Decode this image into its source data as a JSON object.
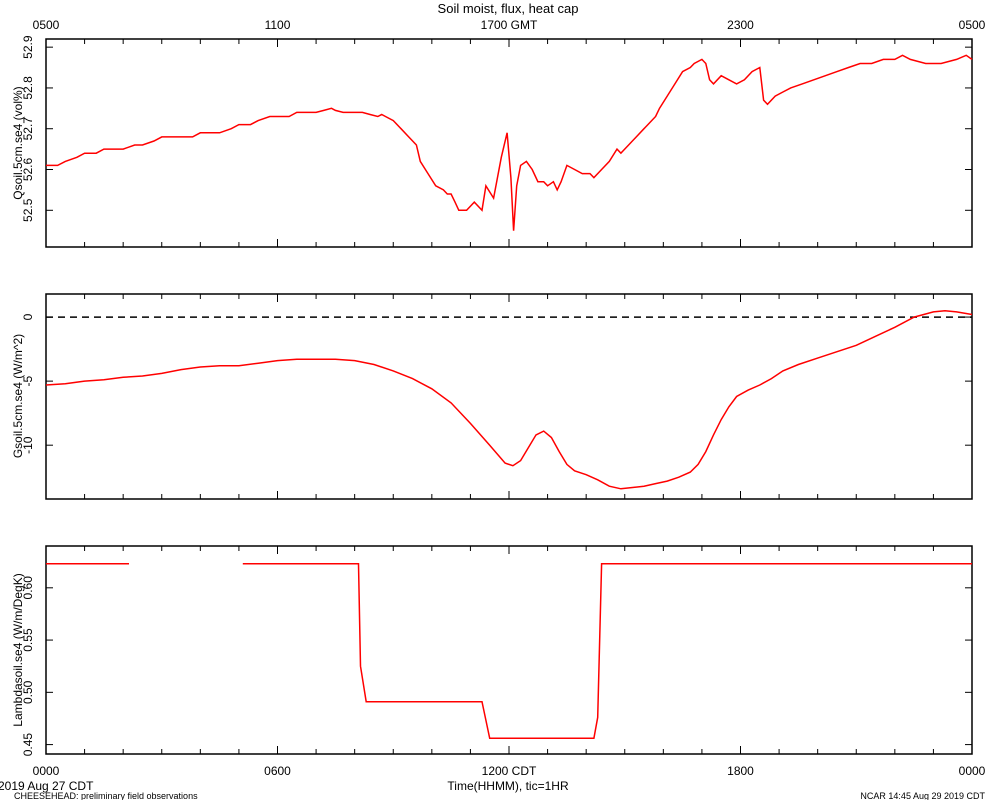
{
  "title": "Soil moist, flux, heat cap",
  "top_axis": {
    "ticks": [
      {
        "x": 0,
        "label": "0500"
      },
      {
        "x": 6,
        "label": "1100"
      },
      {
        "x": 12,
        "label": "1700 GMT"
      },
      {
        "x": 18,
        "label": "2300"
      },
      {
        "x": 24,
        "label": "0500"
      }
    ]
  },
  "bottom_axis": {
    "label": "Time(HHMM), tic=1HR",
    "ticks": [
      {
        "x": 0,
        "label": "0000"
      },
      {
        "x": 6,
        "label": "0600"
      },
      {
        "x": 12,
        "label": "1200 CDT"
      },
      {
        "x": 18,
        "label": "1800"
      },
      {
        "x": 24,
        "label": "0000"
      }
    ]
  },
  "footer": {
    "date": "2019 Aug 27 CDT",
    "project": "CHEESEHEAD: preliminary field observations",
    "credit": "NCAR 14:45 Aug 29 2019 CDT"
  },
  "colors": {
    "series": "#ff0000",
    "axis": "#000000"
  },
  "chart_data": [
    {
      "type": "line",
      "ylabel": "Qsoil.5cm.se4 (vol%)",
      "xlim": [
        0,
        24
      ],
      "ylim": [
        52.41,
        52.92
      ],
      "yticks": [
        {
          "v": 52.5,
          "label": "52.5"
        },
        {
          "v": 52.6,
          "label": "52.6"
        },
        {
          "v": 52.7,
          "label": "52.7"
        },
        {
          "v": 52.8,
          "label": "52.8"
        },
        {
          "v": 52.9,
          "label": "52.9"
        }
      ],
      "series": [
        {
          "values": [
            [
              0,
              52.61
            ],
            [
              0.3,
              52.61
            ],
            [
              0.5,
              52.62
            ],
            [
              0.8,
              52.63
            ],
            [
              1.0,
              52.64
            ],
            [
              1.3,
              52.64
            ],
            [
              1.5,
              52.65
            ],
            [
              1.8,
              52.65
            ],
            [
              2.0,
              52.65
            ],
            [
              2.3,
              52.66
            ],
            [
              2.5,
              52.66
            ],
            [
              2.8,
              52.67
            ],
            [
              3.0,
              52.68
            ],
            [
              3.3,
              52.68
            ],
            [
              3.5,
              52.68
            ],
            [
              3.8,
              52.68
            ],
            [
              4.0,
              52.69
            ],
            [
              4.3,
              52.69
            ],
            [
              4.5,
              52.69
            ],
            [
              4.8,
              52.7
            ],
            [
              5.0,
              52.71
            ],
            [
              5.3,
              52.71
            ],
            [
              5.5,
              52.72
            ],
            [
              5.8,
              52.73
            ],
            [
              6.0,
              52.73
            ],
            [
              6.3,
              52.73
            ],
            [
              6.5,
              52.74
            ],
            [
              6.8,
              52.74
            ],
            [
              7.0,
              52.74
            ],
            [
              7.2,
              52.745
            ],
            [
              7.4,
              52.75
            ],
            [
              7.5,
              52.745
            ],
            [
              7.7,
              52.74
            ],
            [
              8.0,
              52.74
            ],
            [
              8.2,
              52.74
            ],
            [
              8.4,
              52.735
            ],
            [
              8.6,
              52.73
            ],
            [
              8.7,
              52.735
            ],
            [
              8.8,
              52.73
            ],
            [
              9.0,
              52.72
            ],
            [
              9.2,
              52.7
            ],
            [
              9.4,
              52.68
            ],
            [
              9.6,
              52.66
            ],
            [
              9.7,
              52.62
            ],
            [
              9.9,
              52.59
            ],
            [
              10.1,
              52.56
            ],
            [
              10.3,
              52.55
            ],
            [
              10.4,
              52.54
            ],
            [
              10.5,
              52.54
            ],
            [
              10.6,
              52.52
            ],
            [
              10.7,
              52.5
            ],
            [
              10.9,
              52.5
            ],
            [
              11.1,
              52.52
            ],
            [
              11.3,
              52.5
            ],
            [
              11.4,
              52.56
            ],
            [
              11.6,
              52.53
            ],
            [
              11.8,
              52.63
            ],
            [
              11.95,
              52.69
            ],
            [
              12.05,
              52.58
            ],
            [
              12.12,
              52.45
            ],
            [
              12.2,
              52.56
            ],
            [
              12.3,
              52.61
            ],
            [
              12.45,
              52.62
            ],
            [
              12.6,
              52.6
            ],
            [
              12.75,
              52.57
            ],
            [
              12.9,
              52.57
            ],
            [
              13.0,
              52.56
            ],
            [
              13.15,
              52.57
            ],
            [
              13.25,
              52.55
            ],
            [
              13.35,
              52.57
            ],
            [
              13.5,
              52.61
            ],
            [
              13.7,
              52.6
            ],
            [
              13.9,
              52.59
            ],
            [
              14.1,
              52.59
            ],
            [
              14.2,
              52.58
            ],
            [
              14.4,
              52.6
            ],
            [
              14.6,
              52.62
            ],
            [
              14.8,
              52.65
            ],
            [
              14.9,
              52.64
            ],
            [
              15.1,
              52.66
            ],
            [
              15.3,
              52.68
            ],
            [
              15.5,
              52.7
            ],
            [
              15.6,
              52.71
            ],
            [
              15.8,
              52.73
            ],
            [
              15.9,
              52.75
            ],
            [
              16.1,
              52.78
            ],
            [
              16.3,
              52.81
            ],
            [
              16.5,
              52.84
            ],
            [
              16.7,
              52.85
            ],
            [
              16.8,
              52.86
            ],
            [
              17.0,
              52.87
            ],
            [
              17.1,
              52.86
            ],
            [
              17.2,
              52.82
            ],
            [
              17.3,
              52.81
            ],
            [
              17.5,
              52.83
            ],
            [
              17.7,
              52.82
            ],
            [
              17.9,
              52.81
            ],
            [
              18.1,
              52.82
            ],
            [
              18.3,
              52.84
            ],
            [
              18.5,
              52.85
            ],
            [
              18.6,
              52.77
            ],
            [
              18.7,
              52.76
            ],
            [
              18.9,
              52.78
            ],
            [
              19.1,
              52.79
            ],
            [
              19.3,
              52.8
            ],
            [
              19.6,
              52.81
            ],
            [
              19.9,
              52.82
            ],
            [
              20.2,
              52.83
            ],
            [
              20.5,
              52.84
            ],
            [
              20.8,
              52.85
            ],
            [
              21.1,
              52.86
            ],
            [
              21.4,
              52.86
            ],
            [
              21.7,
              52.87
            ],
            [
              22.0,
              52.87
            ],
            [
              22.2,
              52.88
            ],
            [
              22.4,
              52.87
            ],
            [
              22.8,
              52.86
            ],
            [
              23.2,
              52.86
            ],
            [
              23.6,
              52.87
            ],
            [
              23.85,
              52.88
            ],
            [
              24.0,
              52.87
            ]
          ]
        }
      ]
    },
    {
      "type": "line",
      "ylabel": "Gsoil.5cm.se4 (W/m^2)",
      "xlim": [
        0,
        24
      ],
      "ylim": [
        -14.2,
        1.8
      ],
      "yticks": [
        {
          "v": -10,
          "label": "-10"
        },
        {
          "v": -5,
          "label": "-5"
        },
        {
          "v": 0,
          "label": "0"
        }
      ],
      "zero_line": true,
      "series": [
        {
          "values": [
            [
              0,
              -5.3
            ],
            [
              0.5,
              -5.2
            ],
            [
              1.0,
              -5.0
            ],
            [
              1.5,
              -4.9
            ],
            [
              2.0,
              -4.7
            ],
            [
              2.5,
              -4.6
            ],
            [
              3.0,
              -4.4
            ],
            [
              3.5,
              -4.1
            ],
            [
              4.0,
              -3.9
            ],
            [
              4.5,
              -3.8
            ],
            [
              5.0,
              -3.8
            ],
            [
              5.5,
              -3.6
            ],
            [
              6.0,
              -3.4
            ],
            [
              6.5,
              -3.3
            ],
            [
              7.0,
              -3.3
            ],
            [
              7.5,
              -3.3
            ],
            [
              8.0,
              -3.4
            ],
            [
              8.5,
              -3.7
            ],
            [
              9.0,
              -4.2
            ],
            [
              9.5,
              -4.8
            ],
            [
              10.0,
              -5.6
            ],
            [
              10.5,
              -6.7
            ],
            [
              11.0,
              -8.3
            ],
            [
              11.5,
              -10.0
            ],
            [
              11.9,
              -11.4
            ],
            [
              12.1,
              -11.6
            ],
            [
              12.3,
              -11.2
            ],
            [
              12.5,
              -10.2
            ],
            [
              12.7,
              -9.2
            ],
            [
              12.9,
              -8.9
            ],
            [
              13.1,
              -9.4
            ],
            [
              13.3,
              -10.5
            ],
            [
              13.5,
              -11.5
            ],
            [
              13.7,
              -12.0
            ],
            [
              14.0,
              -12.3
            ],
            [
              14.3,
              -12.7
            ],
            [
              14.6,
              -13.2
            ],
            [
              14.9,
              -13.4
            ],
            [
              15.2,
              -13.3
            ],
            [
              15.5,
              -13.2
            ],
            [
              15.8,
              -13.0
            ],
            [
              16.1,
              -12.8
            ],
            [
              16.4,
              -12.5
            ],
            [
              16.7,
              -12.1
            ],
            [
              16.9,
              -11.5
            ],
            [
              17.1,
              -10.5
            ],
            [
              17.3,
              -9.2
            ],
            [
              17.5,
              -8.0
            ],
            [
              17.7,
              -7.0
            ],
            [
              17.9,
              -6.2
            ],
            [
              18.2,
              -5.7
            ],
            [
              18.5,
              -5.3
            ],
            [
              18.8,
              -4.8
            ],
            [
              19.1,
              -4.2
            ],
            [
              19.5,
              -3.7
            ],
            [
              20.0,
              -3.2
            ],
            [
              20.5,
              -2.7
            ],
            [
              21.0,
              -2.2
            ],
            [
              21.5,
              -1.5
            ],
            [
              22.0,
              -0.8
            ],
            [
              22.5,
              0.0
            ],
            [
              23.0,
              0.4
            ],
            [
              23.3,
              0.5
            ],
            [
              23.6,
              0.4
            ],
            [
              24.0,
              0.2
            ]
          ]
        }
      ]
    },
    {
      "type": "line",
      "ylabel": "Lambdasoil.se4 (W/m/DegK)",
      "xlim": [
        0,
        24
      ],
      "ylim": [
        0.441,
        0.64
      ],
      "yticks": [
        {
          "v": 0.45,
          "label": "0.45"
        },
        {
          "v": 0.5,
          "label": "0.50"
        },
        {
          "v": 0.55,
          "label": "0.55"
        },
        {
          "v": 0.6,
          "label": "0.60"
        }
      ],
      "series": [
        {
          "segments": [
            [
              [
                0,
                0.623
              ],
              [
                2.15,
                0.623
              ]
            ],
            [
              [
                5.1,
                0.623
              ],
              [
                8.1,
                0.623
              ],
              [
                8.15,
                0.525
              ],
              [
                8.3,
                0.491
              ],
              [
                11.3,
                0.491
              ],
              [
                11.5,
                0.456
              ],
              [
                14.2,
                0.456
              ],
              [
                14.3,
                0.476
              ],
              [
                14.4,
                0.623
              ],
              [
                24.0,
                0.623
              ]
            ]
          ]
        }
      ]
    }
  ]
}
